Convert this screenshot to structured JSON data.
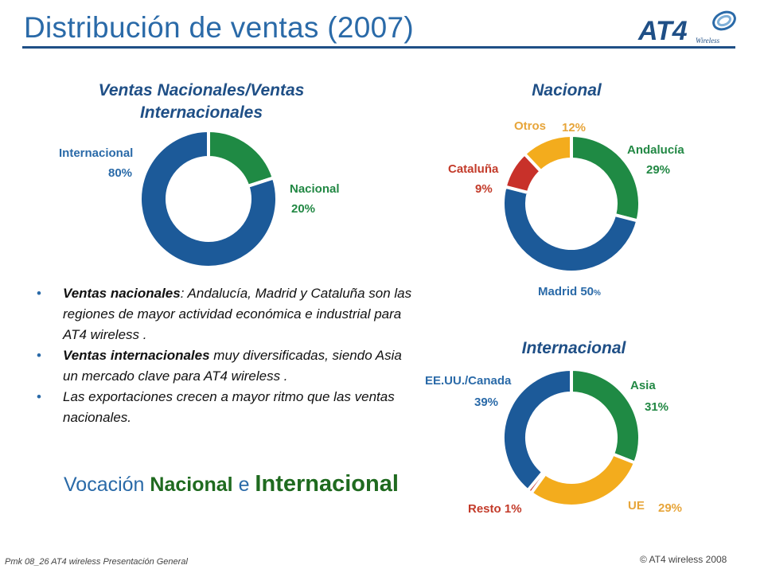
{
  "header": {
    "title": "Distribución  de ventas  (2007)",
    "logo_text": "AT4",
    "logo_subtext": "Wireless"
  },
  "charts": {
    "nat_int": {
      "title_line1": "Ventas Nacionales/Ventas",
      "title_line2": "Internacionales"
    },
    "nacional": {
      "title": "Nacional"
    },
    "internacional": {
      "title": "Internacional"
    }
  },
  "labels": {
    "ni_internacional": "Internacional",
    "ni_internacional_pct": "80%",
    "ni_nacional": "Nacional",
    "ni_nacional_pct": "20%",
    "nac_otros": "Otros",
    "nac_otros_pct": "12%",
    "nac_andalucia": "Andalucía",
    "nac_andalucia_pct": "29%",
    "nac_cataluna": "Cataluña",
    "nac_cataluna_pct": "9%",
    "nac_madrid": "Madrid",
    "nac_madrid_num": "50",
    "nac_madrid_sign": "%",
    "int_eeuu": "EE.UU./Canada",
    "int_eeuu_pct": "39%",
    "int_asia": "Asia",
    "int_asia_pct": "31%",
    "int_resto": "Resto",
    "int_resto_pct": "1%",
    "int_ue": "UE",
    "int_ue_pct": "29%"
  },
  "bullets": [
    {
      "bold": "Ventas nacionales",
      "text": ": Andalucía, Madrid y Cataluña son las regiones de mayor actividad económica e industrial para AT4 wireless ."
    },
    {
      "bold": "Ventas internacionales",
      "text": " muy diversificadas, siendo Asia un mercado clave para AT4 wireless ."
    },
    {
      "bold": "",
      "text": "Las exportaciones crecen a mayor ritmo que las ventas nacionales."
    }
  ],
  "vocacion": {
    "prefix": "Vocación ",
    "word1": "Nacional",
    "mid": " e ",
    "word2": "Internacional"
  },
  "footer": {
    "left": "Pmk 08_26 AT4 wireless Presentación General",
    "right": "© AT4 wireless 2008"
  },
  "colors": {
    "blue": "#1c5a99",
    "green": "#1f8a44",
    "red": "#c8312a",
    "orange": "#f3ac1d"
  },
  "chart_data": [
    {
      "type": "pie",
      "title": "Ventas Nacionales/Ventas Internacionales",
      "slices": [
        {
          "label": "Nacional",
          "value": 20,
          "color": "#1f8a44"
        },
        {
          "label": "Internacional",
          "value": 80,
          "color": "#1c5a99"
        }
      ]
    },
    {
      "type": "pie",
      "title": "Nacional",
      "slices": [
        {
          "label": "Andalucía",
          "value": 29,
          "color": "#1f8a44"
        },
        {
          "label": "Madrid",
          "value": 50,
          "color": "#1c5a99"
        },
        {
          "label": "Cataluña",
          "value": 9,
          "color": "#c8312a"
        },
        {
          "label": "Otros",
          "value": 12,
          "color": "#f3ac1d"
        }
      ]
    },
    {
      "type": "pie",
      "title": "Internacional",
      "slices": [
        {
          "label": "Asia",
          "value": 31,
          "color": "#1f8a44"
        },
        {
          "label": "UE",
          "value": 29,
          "color": "#f3ac1d"
        },
        {
          "label": "Resto",
          "value": 1,
          "color": "#c8312a"
        },
        {
          "label": "EE.UU./Canada",
          "value": 39,
          "color": "#1c5a99"
        }
      ]
    }
  ]
}
